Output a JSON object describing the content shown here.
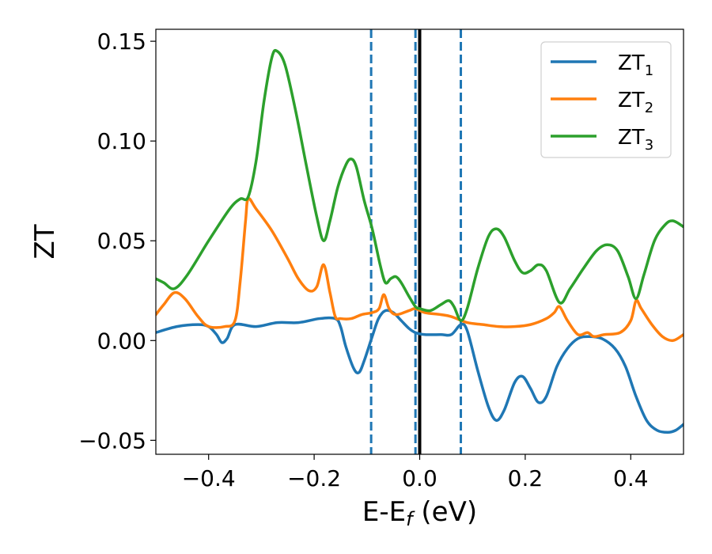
{
  "chart_data": {
    "type": "line",
    "title": "",
    "xlabel": {
      "main": "E-E",
      "sub": "f",
      "unit": " (eV)"
    },
    "ylabel": "ZT",
    "xlim": [
      -0.5,
      0.5
    ],
    "ylim": [
      -0.057,
      0.156
    ],
    "grid": false,
    "legend_position": "top-right",
    "x_ticks": [
      -0.4,
      -0.2,
      0.0,
      0.2,
      0.4
    ],
    "x_tick_labels": [
      "−0.4",
      "−0.2",
      "0.0",
      "0.2",
      "0.4"
    ],
    "y_ticks": [
      -0.05,
      0.0,
      0.05,
      0.1,
      0.15
    ],
    "y_tick_labels": [
      "−0.05",
      "0.00",
      "0.05",
      "0.10",
      "0.15"
    ],
    "reference_lines": [
      {
        "x": -0.092,
        "style": "dashed",
        "color": "#1f77b4"
      },
      {
        "x": -0.008,
        "style": "dashed",
        "color": "#1f77b4"
      },
      {
        "x": 0.078,
        "style": "dashed",
        "color": "#1f77b4"
      },
      {
        "x": 0.0,
        "style": "solid",
        "color": "#000000"
      }
    ],
    "series": [
      {
        "name": "ZT",
        "sub": "1",
        "color": "#1f77b4",
        "points": [
          [
            -0.5,
            0.004
          ],
          [
            -0.46,
            0.007
          ],
          [
            -0.42,
            0.008
          ],
          [
            -0.4,
            0.007
          ],
          [
            -0.385,
            0.003
          ],
          [
            -0.375,
            -0.001
          ],
          [
            -0.365,
            0.001
          ],
          [
            -0.35,
            0.008
          ],
          [
            -0.31,
            0.007
          ],
          [
            -0.27,
            0.009
          ],
          [
            -0.23,
            0.009
          ],
          [
            -0.19,
            0.011
          ],
          [
            -0.16,
            0.011
          ],
          [
            -0.15,
            0.007
          ],
          [
            -0.14,
            -0.003
          ],
          [
            -0.125,
            -0.014
          ],
          [
            -0.115,
            -0.016
          ],
          [
            -0.105,
            -0.01
          ],
          [
            -0.09,
            0.002
          ],
          [
            -0.078,
            0.011
          ],
          [
            -0.065,
            0.015
          ],
          [
            -0.05,
            0.014
          ],
          [
            -0.035,
            0.01
          ],
          [
            -0.02,
            0.006
          ],
          [
            -0.008,
            0.004
          ],
          [
            0.01,
            0.003
          ],
          [
            0.04,
            0.003
          ],
          [
            0.06,
            0.003
          ],
          [
            0.078,
            0.008
          ],
          [
            0.09,
            0.005
          ],
          [
            0.11,
            -0.015
          ],
          [
            0.13,
            -0.033
          ],
          [
            0.145,
            -0.04
          ],
          [
            0.16,
            -0.035
          ],
          [
            0.18,
            -0.021
          ],
          [
            0.195,
            -0.018
          ],
          [
            0.21,
            -0.024
          ],
          [
            0.225,
            -0.031
          ],
          [
            0.24,
            -0.028
          ],
          [
            0.26,
            -0.013
          ],
          [
            0.28,
            -0.004
          ],
          [
            0.3,
            0.001
          ],
          [
            0.32,
            0.002
          ],
          [
            0.345,
            0.001
          ],
          [
            0.37,
            -0.004
          ],
          [
            0.39,
            -0.013
          ],
          [
            0.41,
            -0.028
          ],
          [
            0.43,
            -0.04
          ],
          [
            0.45,
            -0.045
          ],
          [
            0.47,
            -0.046
          ],
          [
            0.485,
            -0.045
          ],
          [
            0.5,
            -0.042
          ]
        ]
      },
      {
        "name": "ZT",
        "sub": "2",
        "color": "#ff7f0e",
        "points": [
          [
            -0.5,
            0.013
          ],
          [
            -0.485,
            0.018
          ],
          [
            -0.465,
            0.024
          ],
          [
            -0.445,
            0.021
          ],
          [
            -0.42,
            0.012
          ],
          [
            -0.4,
            0.007
          ],
          [
            -0.37,
            0.007
          ],
          [
            -0.35,
            0.01
          ],
          [
            -0.34,
            0.03
          ],
          [
            -0.33,
            0.06
          ],
          [
            -0.325,
            0.071
          ],
          [
            -0.31,
            0.066
          ],
          [
            -0.28,
            0.055
          ],
          [
            -0.25,
            0.041
          ],
          [
            -0.23,
            0.031
          ],
          [
            -0.21,
            0.025
          ],
          [
            -0.195,
            0.027
          ],
          [
            -0.182,
            0.038
          ],
          [
            -0.17,
            0.024
          ],
          [
            -0.16,
            0.012
          ],
          [
            -0.15,
            0.011
          ],
          [
            -0.13,
            0.011
          ],
          [
            -0.11,
            0.013
          ],
          [
            -0.09,
            0.014
          ],
          [
            -0.077,
            0.016
          ],
          [
            -0.068,
            0.023
          ],
          [
            -0.058,
            0.016
          ],
          [
            -0.045,
            0.013
          ],
          [
            -0.02,
            0.015
          ],
          [
            -0.008,
            0.016
          ],
          [
            0.01,
            0.014
          ],
          [
            0.04,
            0.013
          ],
          [
            0.06,
            0.012
          ],
          [
            0.09,
            0.009
          ],
          [
            0.12,
            0.008
          ],
          [
            0.15,
            0.007
          ],
          [
            0.18,
            0.007
          ],
          [
            0.21,
            0.008
          ],
          [
            0.24,
            0.011
          ],
          [
            0.255,
            0.014
          ],
          [
            0.265,
            0.017
          ],
          [
            0.28,
            0.01
          ],
          [
            0.3,
            0.003
          ],
          [
            0.318,
            0.004
          ],
          [
            0.33,
            0.002
          ],
          [
            0.35,
            0.003
          ],
          [
            0.38,
            0.004
          ],
          [
            0.4,
            0.01
          ],
          [
            0.41,
            0.02
          ],
          [
            0.42,
            0.016
          ],
          [
            0.44,
            0.008
          ],
          [
            0.46,
            0.002
          ],
          [
            0.48,
            0.0
          ],
          [
            0.5,
            0.003
          ]
        ]
      },
      {
        "name": "ZT",
        "sub": "3",
        "color": "#2ca02c",
        "points": [
          [
            -0.5,
            0.031
          ],
          [
            -0.485,
            0.029
          ],
          [
            -0.465,
            0.026
          ],
          [
            -0.44,
            0.033
          ],
          [
            -0.4,
            0.05
          ],
          [
            -0.36,
            0.066
          ],
          [
            -0.34,
            0.071
          ],
          [
            -0.325,
            0.072
          ],
          [
            -0.31,
            0.09
          ],
          [
            -0.295,
            0.12
          ],
          [
            -0.28,
            0.142
          ],
          [
            -0.27,
            0.145
          ],
          [
            -0.255,
            0.138
          ],
          [
            -0.235,
            0.115
          ],
          [
            -0.215,
            0.088
          ],
          [
            -0.195,
            0.062
          ],
          [
            -0.182,
            0.05
          ],
          [
            -0.17,
            0.06
          ],
          [
            -0.155,
            0.077
          ],
          [
            -0.14,
            0.088
          ],
          [
            -0.13,
            0.091
          ],
          [
            -0.12,
            0.087
          ],
          [
            -0.105,
            0.07
          ],
          [
            -0.09,
            0.056
          ],
          [
            -0.075,
            0.038
          ],
          [
            -0.065,
            0.029
          ],
          [
            -0.055,
            0.031
          ],
          [
            -0.045,
            0.032
          ],
          [
            -0.035,
            0.029
          ],
          [
            -0.02,
            0.022
          ],
          [
            -0.008,
            0.017
          ],
          [
            0.0,
            0.016
          ],
          [
            0.02,
            0.015
          ],
          [
            0.04,
            0.018
          ],
          [
            0.055,
            0.02
          ],
          [
            0.065,
            0.017
          ],
          [
            0.078,
            0.01
          ],
          [
            0.09,
            0.016
          ],
          [
            0.11,
            0.036
          ],
          [
            0.13,
            0.052
          ],
          [
            0.145,
            0.056
          ],
          [
            0.16,
            0.052
          ],
          [
            0.18,
            0.04
          ],
          [
            0.195,
            0.034
          ],
          [
            0.21,
            0.035
          ],
          [
            0.225,
            0.038
          ],
          [
            0.24,
            0.035
          ],
          [
            0.265,
            0.019
          ],
          [
            0.285,
            0.026
          ],
          [
            0.31,
            0.036
          ],
          [
            0.335,
            0.045
          ],
          [
            0.355,
            0.048
          ],
          [
            0.375,
            0.045
          ],
          [
            0.395,
            0.032
          ],
          [
            0.41,
            0.021
          ],
          [
            0.425,
            0.033
          ],
          [
            0.445,
            0.05
          ],
          [
            0.465,
            0.058
          ],
          [
            0.48,
            0.06
          ],
          [
            0.5,
            0.057
          ]
        ]
      }
    ]
  }
}
